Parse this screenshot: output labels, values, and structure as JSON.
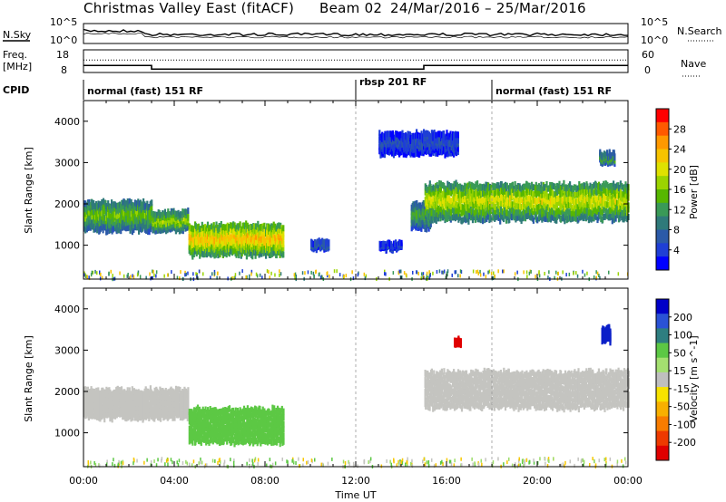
{
  "header": {
    "title": "Christmas Valley East (fitACF)",
    "beam": "Beam 02",
    "date_range": "24/Mar/2016 – 25/Mar/2016"
  },
  "top_panel": {
    "nsky_label": "N.Sky",
    "nsearch_label": "N.Search",
    "nsky_tick_top": "10^5",
    "nsky_tick_bottom": "10^0",
    "nsearch_tick_top": "10^5",
    "nsearch_tick_bottom": "10^0",
    "freq_label_1": "Freq.",
    "freq_label_2": "[MHz]",
    "nave_label": "Nave",
    "freq_tick_top": "18",
    "freq_tick_bottom": "8",
    "nave_tick_top": "60",
    "nave_tick_bottom": "0",
    "cpid_label": "CPID",
    "cpid_segments": [
      {
        "label": "normal (fast) 151 RF",
        "start_h": 0,
        "end_h": 12
      },
      {
        "label": "rbsp 201 RF",
        "start_h": 12,
        "end_h": 18
      },
      {
        "label": "normal (fast) 151 RF",
        "start_h": 18,
        "end_h": 24
      }
    ],
    "frequency_steps": [
      {
        "start_h": 0,
        "end_h": 3,
        "mhz": 11.1
      },
      {
        "start_h": 3,
        "end_h": 15,
        "mhz": 9.5
      },
      {
        "start_h": 15,
        "end_h": 24,
        "mhz": 11.1
      }
    ],
    "nave_level": 33
  },
  "power_panel": {
    "ylabel": "Slant Range [km]",
    "colorbar_label": "Power [dB]",
    "colorbar_ticks": [
      "28",
      "24",
      "20",
      "16",
      "12",
      "8",
      "4"
    ],
    "colorbar_colors": [
      "#ff0000",
      "#ff5a00",
      "#ff9900",
      "#f7c300",
      "#dfe100",
      "#9bd400",
      "#57b700",
      "#3a9a57",
      "#2f7a7a",
      "#2b5aa8",
      "#1f3fd6",
      "#0000ff"
    ]
  },
  "velocity_panel": {
    "ylabel": "Slant Range [km]",
    "colorbar_label": "Velocity [m s^-1]",
    "colorbar_ticks": [
      "200",
      "100",
      "50",
      "15",
      "-15",
      "-50",
      "-100",
      "-200"
    ],
    "colorbar_colors": [
      "#0000c8",
      "#2a52d6",
      "#2e7e80",
      "#5cc844",
      "#a4e070",
      "#bfbfbf",
      "#f7e200",
      "#f8b000",
      "#f87c00",
      "#ee3a00",
      "#e00000"
    ]
  },
  "chart_data": {
    "type": "heatmap",
    "title": "Christmas Valley East (fitACF)",
    "xlabel": "Time UT",
    "ylabel": "Slant Range [km]",
    "x_ticks": [
      "00:00",
      "04:00",
      "08:00",
      "12:00",
      "16:00",
      "20:00",
      "00:00"
    ],
    "y_ticks": [
      "1000",
      "2000",
      "3000",
      "4000"
    ],
    "xlim_hours": [
      0,
      24
    ],
    "ylim_km": [
      180,
      4500
    ],
    "power_echo_regions": [
      {
        "t_start": 0.0,
        "t_end": 3.0,
        "range_km": [
          1450,
          2150
        ],
        "power_db": 16
      },
      {
        "t_start": 3.0,
        "t_end": 4.6,
        "range_km": [
          1450,
          1900
        ],
        "power_db": 18
      },
      {
        "t_start": 4.6,
        "t_end": 8.8,
        "range_km": [
          850,
          1600
        ],
        "power_db": 24
      },
      {
        "t_start": 10.0,
        "t_end": 10.8,
        "range_km": [
          1000,
          1150
        ],
        "power_db": 8
      },
      {
        "t_start": 13.0,
        "t_end": 14.0,
        "range_km": [
          1000,
          1100
        ],
        "power_db": 6
      },
      {
        "t_start": 14.4,
        "t_end": 15.3,
        "range_km": [
          1500,
          2100
        ],
        "power_db": 14
      },
      {
        "t_start": 15.0,
        "t_end": 24.0,
        "range_km": [
          1700,
          2600
        ],
        "power_db": 20
      },
      {
        "t_start": 13.0,
        "t_end": 16.5,
        "range_km": [
          3300,
          3800
        ],
        "power_db": 6
      },
      {
        "t_start": 22.7,
        "t_end": 23.4,
        "range_km": [
          3100,
          3300
        ],
        "power_db": 14
      }
    ],
    "velocity_echo_regions": [
      {
        "t_start": 0.0,
        "t_end": 4.6,
        "range_km": [
          1450,
          2150
        ],
        "velocity_ms": 0
      },
      {
        "t_start": 4.6,
        "t_end": 8.8,
        "range_km": [
          850,
          1700
        ],
        "velocity_ms": 40
      },
      {
        "t_start": 15.0,
        "t_end": 24.0,
        "range_km": [
          1700,
          2600
        ],
        "velocity_ms": 0
      },
      {
        "t_start": 16.3,
        "t_end": 16.6,
        "range_km": [
          3250,
          3350
        ],
        "velocity_ms": -200
      },
      {
        "t_start": 22.8,
        "t_end": 23.2,
        "range_km": [
          3300,
          3600
        ],
        "velocity_ms": 200
      }
    ]
  }
}
